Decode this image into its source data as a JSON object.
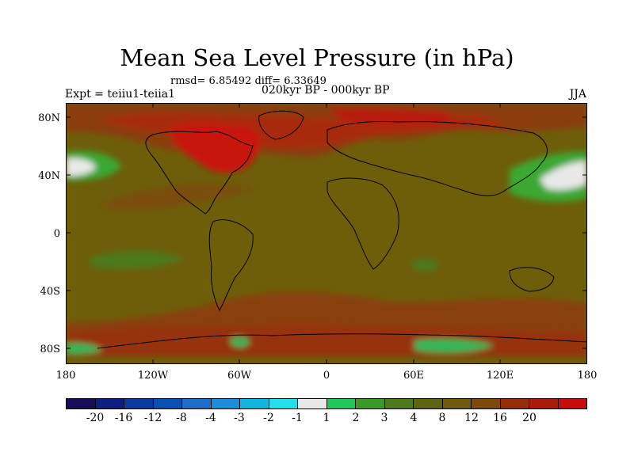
{
  "title": "Mean Sea Level Pressure (in hPa)",
  "stats": "rmsd= 6.85492 diff= 6.33649",
  "expt": "Expt = teiiu1-teiia1",
  "period": "020kyr BP - 000kyr BP",
  "season": "JJA",
  "map": {
    "lat_ticks": [
      "80N",
      "40N",
      "0",
      "40S",
      "80S"
    ],
    "lon_ticks": [
      "180",
      "120W",
      "60W",
      "0",
      "60E",
      "120E",
      "180"
    ],
    "base_color": "#6e5e0a"
  },
  "colorbar": {
    "colors": [
      "#1a0a5a",
      "#0d1e80",
      "#0a3aa0",
      "#0a50b4",
      "#1a6ec8",
      "#1a8ed8",
      "#12b4e0",
      "#20e0e8",
      "#e8e8e8",
      "#1ec85a",
      "#3a9a28",
      "#4e7a1a",
      "#5e6410",
      "#6e5a0a",
      "#7e4a0a",
      "#962e0a",
      "#aa1c08",
      "#c80c0c"
    ],
    "labels": [
      "-20",
      "-16",
      "-12",
      "-8",
      "-4",
      "-3",
      "-2",
      "-1",
      "1",
      "2",
      "3",
      "4",
      "8",
      "12",
      "16",
      "20"
    ]
  }
}
